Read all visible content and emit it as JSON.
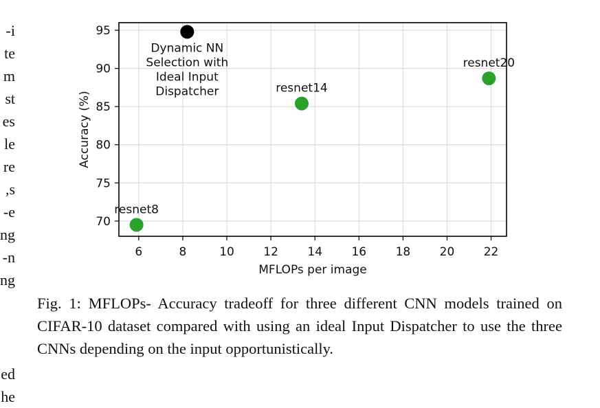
{
  "left_column_fragments": [
    "i-",
    "te",
    "m",
    "st",
    "es",
    "le",
    "re",
    "s,",
    "e-",
    "ng",
    "n-",
    "ng"
  ],
  "left_column_fragments_bottom": [
    "ed",
    "he"
  ],
  "caption": "Fig. 1: MFLOPs- Accuracy tradeoff for three different CNN models trained on CIFAR-10 dataset compared with using an ideal Input Dispatcher to use the three CNNs depending on the input opportunistically.",
  "chart_data": {
    "type": "scatter",
    "xlabel": "MFLOPs per image",
    "ylabel": "Accuracy (%)",
    "xlim": [
      5.1,
      22.7
    ],
    "ylim": [
      68.0,
      96.0
    ],
    "xticks": [
      6,
      8,
      10,
      12,
      14,
      16,
      18,
      20,
      22
    ],
    "yticks": [
      70,
      75,
      80,
      85,
      90,
      95
    ],
    "grid": true,
    "points": [
      {
        "x": 5.9,
        "y": 69.5,
        "label": "resnet8",
        "color": "#2ca02c"
      },
      {
        "x": 13.4,
        "y": 85.4,
        "label": "resnet14",
        "color": "#2ca02c"
      },
      {
        "x": 21.9,
        "y": 88.7,
        "label": "resnet20",
        "color": "#2ca02c"
      },
      {
        "x": 8.2,
        "y": 94.8,
        "label": "Dynamic NN Selection with Ideal Input Dispatcher",
        "label_lines": [
          "Dynamic NN",
          "Selection with",
          "Ideal Input",
          "Dispatcher"
        ],
        "color": "#000000"
      }
    ]
  }
}
